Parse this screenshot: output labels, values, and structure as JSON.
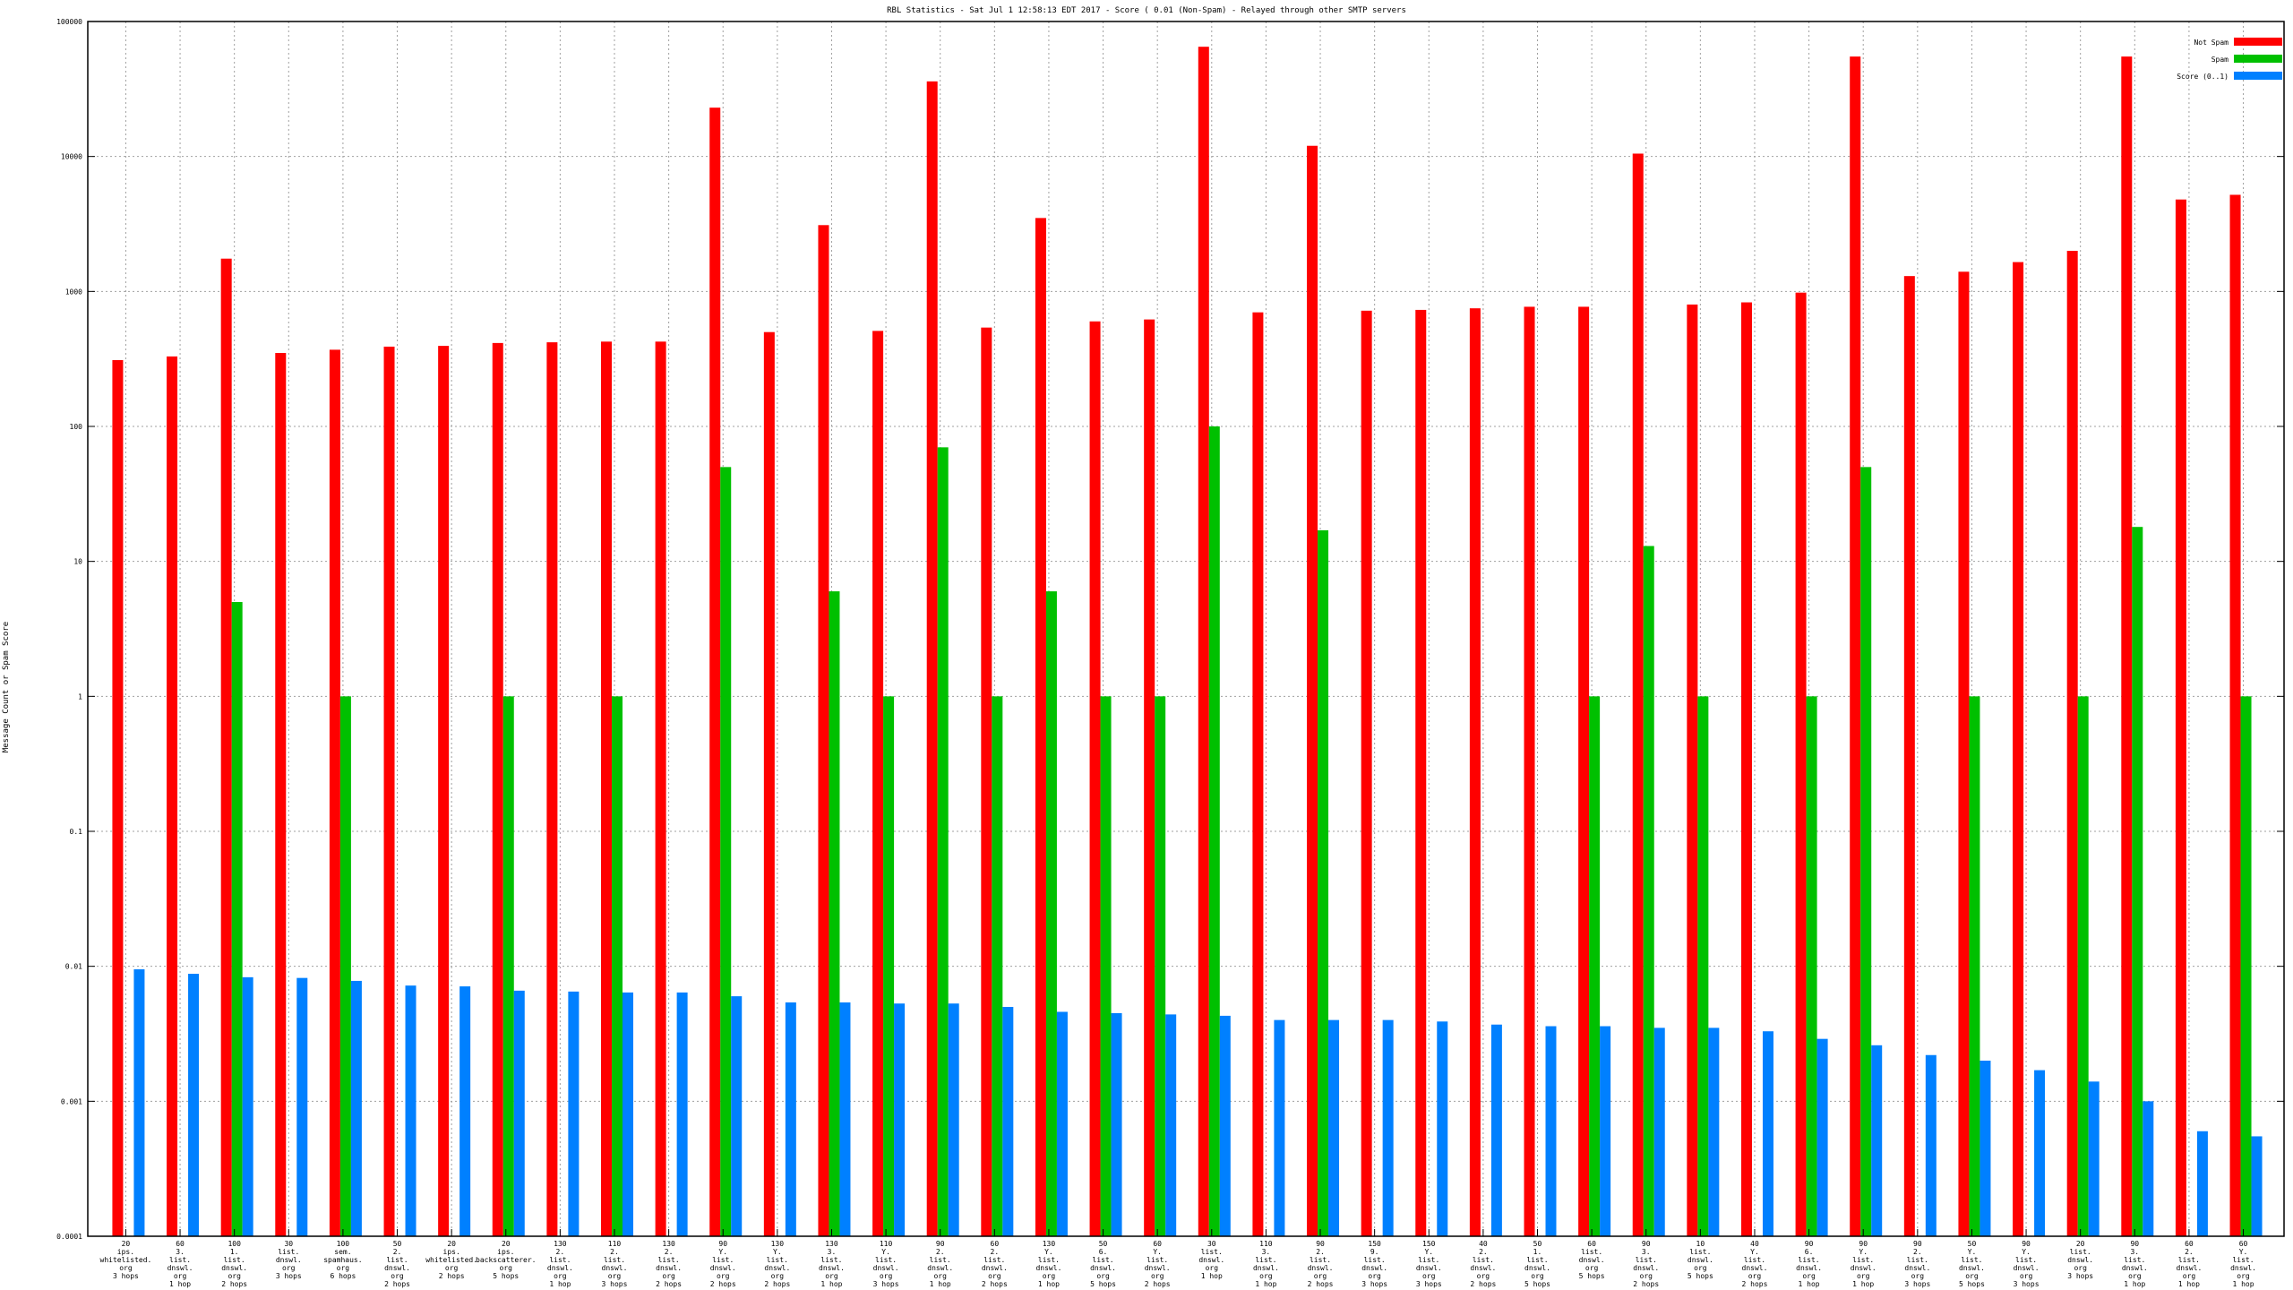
{
  "chart_data": {
    "type": "bar",
    "title": "RBL Statistics - Sat Jul  1 12:58:13 EDT 2017 - Score ( 0.01 (Non-Spam) - Relayed through other SMTP servers",
    "xlabel": "",
    "ylabel": "Message Count or Spam Score",
    "yscale": "log",
    "ylim": [
      0.0001,
      100000
    ],
    "yticks": [
      {
        "value": 100000,
        "label": "100000"
      },
      {
        "value": 10000,
        "label": "10000"
      },
      {
        "value": 1000,
        "label": "1000"
      },
      {
        "value": 100,
        "label": "100"
      },
      {
        "value": 10,
        "label": "10"
      },
      {
        "value": 1,
        "label": "1"
      },
      {
        "value": 0.1,
        "label": "0.1"
      },
      {
        "value": 0.01,
        "label": "0.01"
      },
      {
        "value": 0.001,
        "label": "0.001"
      },
      {
        "value": 0.0001,
        "label": "0.0001"
      }
    ],
    "grid": true,
    "legend_position": "top-right",
    "categories": [
      [
        "20",
        "ips.",
        "whitelisted.",
        "org",
        "3 hops"
      ],
      [
        "60",
        "3.",
        "list.",
        "dnswl.",
        "org",
        "1 hop"
      ],
      [
        "100",
        "1.",
        "list.",
        "dnswl.",
        "org",
        "2 hops"
      ],
      [
        "30",
        "list.",
        "dnswl.",
        "org",
        "3 hops"
      ],
      [
        "100",
        "sem.",
        "spamhaus.",
        "org",
        "6 hops"
      ],
      [
        "50",
        "2.",
        "list.",
        "dnswl.",
        "org",
        "2 hops"
      ],
      [
        "20",
        "ips.",
        "whitelisted.",
        "org",
        "2 hops"
      ],
      [
        "20",
        "ips.",
        "backscatterer.",
        "org",
        "5 hops"
      ],
      [
        "130",
        "2.",
        "list.",
        "dnswl.",
        "org",
        "1 hop"
      ],
      [
        "110",
        "2.",
        "list.",
        "dnswl.",
        "org",
        "3 hops"
      ],
      [
        "130",
        "2.",
        "list.",
        "dnswl.",
        "org",
        "2 hops"
      ],
      [
        "90",
        "Y.",
        "list.",
        "dnswl.",
        "org",
        "2 hops"
      ],
      [
        "130",
        "Y.",
        "list.",
        "dnswl.",
        "org",
        "2 hops"
      ],
      [
        "130",
        "3.",
        "list.",
        "dnswl.",
        "org",
        "1 hop"
      ],
      [
        "110",
        "Y.",
        "list.",
        "dnswl.",
        "org",
        "3 hops"
      ],
      [
        "90",
        "2.",
        "list.",
        "dnswl.",
        "org",
        "1 hop"
      ],
      [
        "60",
        "2.",
        "list.",
        "dnswl.",
        "org",
        "2 hops"
      ],
      [
        "130",
        "Y.",
        "list.",
        "dnswl.",
        "org",
        "1 hop"
      ],
      [
        "50",
        "6.",
        "list.",
        "dnswl.",
        "org",
        "5 hops"
      ],
      [
        "60",
        "Y.",
        "list.",
        "dnswl.",
        "org",
        "2 hops"
      ],
      [
        "30",
        "list.",
        "dnswl.",
        "org",
        "1 hop"
      ],
      [
        "110",
        "3.",
        "list.",
        "dnswl.",
        "org",
        "1 hop"
      ],
      [
        "90",
        "2.",
        "list.",
        "dnswl.",
        "org",
        "2 hops"
      ],
      [
        "150",
        "9.",
        "list.",
        "dnswl.",
        "org",
        "3 hops"
      ],
      [
        "150",
        "Y.",
        "list.",
        "dnswl.",
        "org",
        "3 hops"
      ],
      [
        "40",
        "2.",
        "list.",
        "dnswl.",
        "org",
        "2 hops"
      ],
      [
        "50",
        "1.",
        "list.",
        "dnswl.",
        "org",
        "5 hops"
      ],
      [
        "60",
        "list.",
        "dnswl.",
        "org",
        "5 hops"
      ],
      [
        "90",
        "3.",
        "list.",
        "dnswl.",
        "org",
        "2 hops"
      ],
      [
        "10",
        "list.",
        "dnswl.",
        "org",
        "5 hops"
      ],
      [
        "40",
        "Y.",
        "list.",
        "dnswl.",
        "org",
        "2 hops"
      ],
      [
        "90",
        "6.",
        "list.",
        "dnswl.",
        "org",
        "1 hop"
      ],
      [
        "90",
        "Y.",
        "list.",
        "dnswl.",
        "org",
        "1 hop"
      ],
      [
        "90",
        "2.",
        "list.",
        "dnswl.",
        "org",
        "3 hops"
      ],
      [
        "50",
        "Y.",
        "list.",
        "dnswl.",
        "org",
        "5 hops"
      ],
      [
        "90",
        "Y.",
        "list.",
        "dnswl.",
        "org",
        "3 hops"
      ],
      [
        "20",
        "list.",
        "dnswl.",
        "org",
        "3 hops"
      ],
      [
        "90",
        "3.",
        "list.",
        "dnswl.",
        "org",
        "1 hop"
      ],
      [
        "60",
        "2.",
        "list.",
        "dnswl.",
        "org",
        "1 hop"
      ],
      [
        "60",
        "Y.",
        "list.",
        "dnswl.",
        "org",
        "1 hop"
      ]
    ],
    "series": [
      {
        "name": "Not Spam",
        "color": "#ff0000",
        "values": [
          310,
          330,
          1750,
          350,
          370,
          390,
          395,
          415,
          420,
          425,
          425,
          23000,
          500,
          3100,
          510,
          36000,
          540,
          3500,
          600,
          620,
          65000,
          700,
          12000,
          720,
          730,
          750,
          770,
          770,
          10500,
          800,
          830,
          980,
          55000,
          1300,
          1400,
          1650,
          2000,
          55000,
          4800,
          5200
        ]
      },
      {
        "name": "Spam",
        "color": "#00c000",
        "values": [
          null,
          null,
          5,
          null,
          1,
          null,
          null,
          1,
          null,
          1,
          null,
          50,
          null,
          6,
          1,
          70,
          1,
          6,
          1,
          1,
          100,
          null,
          17,
          null,
          null,
          null,
          null,
          1,
          13,
          1,
          null,
          1,
          50,
          null,
          1,
          null,
          1,
          18,
          null,
          1
        ]
      },
      {
        "name": "Score (0..1)",
        "color": "#0080ff",
        "values": [
          0.0095,
          0.0088,
          0.0083,
          0.0082,
          0.0078,
          0.0072,
          0.0071,
          0.0066,
          0.0065,
          0.0064,
          0.0064,
          0.006,
          0.0054,
          0.0054,
          0.0053,
          0.0053,
          0.005,
          0.0046,
          0.0045,
          0.0044,
          0.0043,
          0.004,
          0.004,
          0.004,
          0.0039,
          0.0037,
          0.0036,
          0.0036,
          0.0035,
          0.0035,
          0.0033,
          0.0029,
          0.0026,
          0.0022,
          0.002,
          0.0017,
          0.0014,
          0.001,
          0.0006,
          0.00055
        ]
      }
    ]
  }
}
